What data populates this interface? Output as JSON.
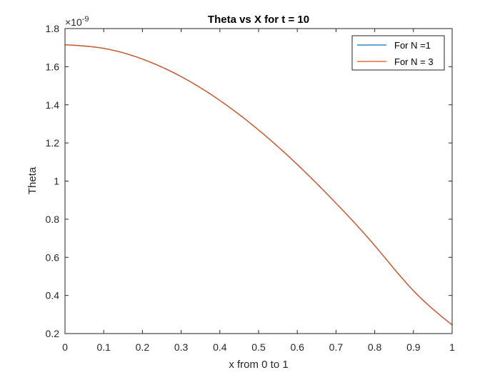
{
  "chart_data": {
    "type": "line",
    "title": "Theta vs X  for t = 10",
    "xlabel": "x from 0 to 1",
    "ylabel": "Theta",
    "y_exponent_base": "×10",
    "y_exponent_power": "-9",
    "xlim": [
      0,
      1
    ],
    "ylim": [
      0.2,
      1.8
    ],
    "xticks": [
      0,
      0.1,
      0.2,
      0.3,
      0.4,
      0.5,
      0.6,
      0.7,
      0.8,
      0.9,
      1
    ],
    "xtick_labels": [
      "0",
      "0.1",
      "0.2",
      "0.3",
      "0.4",
      "0.5",
      "0.6",
      "0.7",
      "0.8",
      "0.9",
      "1"
    ],
    "yticks": [
      0.2,
      0.4,
      0.6,
      0.8,
      1.0,
      1.2,
      1.4,
      1.6,
      1.8
    ],
    "ytick_labels": [
      "0.2",
      "0.4",
      "0.6",
      "0.8",
      "1",
      "1.2",
      "1.4",
      "1.6",
      "1.8"
    ],
    "grid": false,
    "legend_position": "top-right",
    "x": [
      0,
      0.1,
      0.2,
      0.3,
      0.4,
      0.5,
      0.6,
      0.7,
      0.8,
      0.9,
      1.0
    ],
    "series": [
      {
        "name": "For N =1",
        "color": "#0072BD",
        "values": [
          1.715,
          1.696,
          1.64,
          1.548,
          1.423,
          1.268,
          1.087,
          0.884,
          0.662,
          0.425,
          0.245
        ]
      },
      {
        "name": "For N = 3",
        "color": "#D95319",
        "values": [
          1.715,
          1.696,
          1.64,
          1.548,
          1.423,
          1.268,
          1.087,
          0.884,
          0.662,
          0.425,
          0.245
        ]
      }
    ]
  }
}
